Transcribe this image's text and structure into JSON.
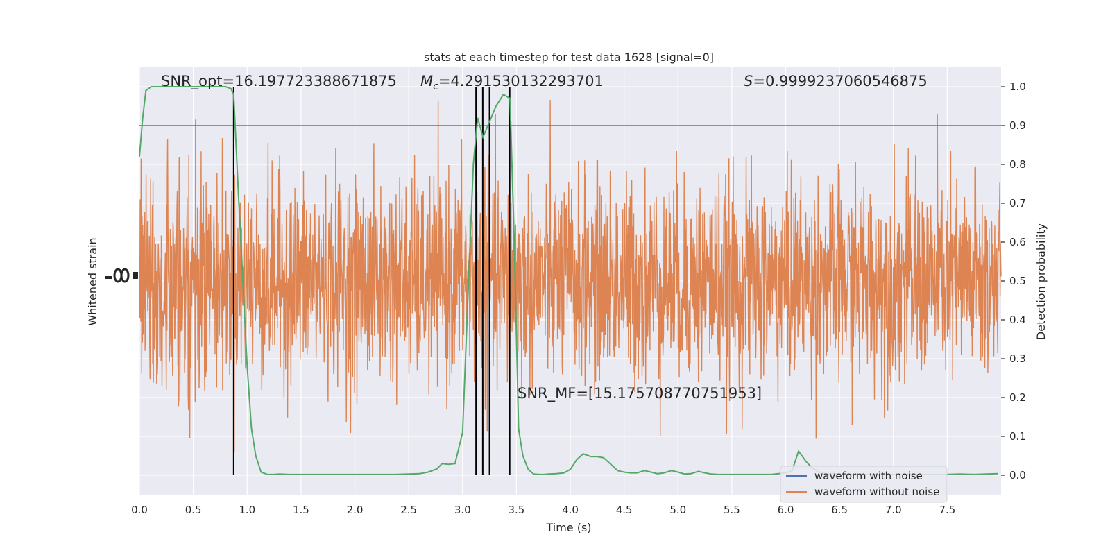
{
  "chart_data": {
    "type": "line",
    "title": "stats at each timestep for test data 1628 [signal=0]",
    "xlabel": "Time (s)",
    "ylabel_left": "Whitened strain",
    "ylabel_right": "Detection probability",
    "xlim": [
      0,
      8
    ],
    "ylim_right": [
      -0.05,
      1.05
    ],
    "x_ticks": [
      "0.0",
      "0.5",
      "1.0",
      "1.5",
      "2.0",
      "2.5",
      "3.0",
      "3.5",
      "4.0",
      "4.5",
      "5.0",
      "5.5",
      "6.0",
      "6.5",
      "7.0",
      "7.5"
    ],
    "y_ticks_right": [
      "0.0",
      "0.1",
      "0.2",
      "0.3",
      "0.4",
      "0.5",
      "0.6",
      "0.7",
      "0.8",
      "0.9",
      "1.0"
    ],
    "grid": true,
    "legend_position": "bottom-right",
    "annotations": {
      "snr_opt": "SNR_opt=16.197723388671875",
      "mc_symbol": "M",
      "mc_sub": "c",
      "mc_value": "=4.291530132293701",
      "s_symbol": "S",
      "s_value": "=0.9999237060546875",
      "snr_mf": "SNR_MF=[15.175708770751953]"
    },
    "threshold": {
      "value": 0.9,
      "color": "#c44e52"
    },
    "vertical_lines_x": [
      0.875,
      3.125,
      3.1875,
      3.25,
      3.4375
    ],
    "series": [
      {
        "name": "waveform with noise",
        "color": "#4c72b0",
        "kind": "noise"
      },
      {
        "name": "waveform without noise",
        "color": "#dd8452",
        "kind": "noise"
      },
      {
        "color": "#55a868",
        "kind": "probability",
        "x": [
          0.0,
          0.03,
          0.06,
          0.11,
          0.18,
          0.3,
          0.45,
          0.6,
          0.7,
          0.75,
          0.8,
          0.85,
          0.875,
          0.92,
          1.0,
          1.04,
          1.08,
          1.13,
          1.19,
          1.25,
          1.3,
          1.38,
          1.5,
          1.62,
          1.75,
          1.87,
          2.0,
          2.12,
          2.25,
          2.37,
          2.5,
          2.6,
          2.68,
          2.76,
          2.81,
          2.87,
          2.93,
          3.0,
          3.05,
          3.1,
          3.14,
          3.19,
          3.25,
          3.31,
          3.38,
          3.44,
          3.48,
          3.52,
          3.56,
          3.61,
          3.66,
          3.71,
          3.76,
          3.8,
          3.87,
          3.94,
          4.0,
          4.06,
          4.12,
          4.19,
          4.25,
          4.31,
          4.37,
          4.44,
          4.5,
          4.56,
          4.62,
          4.69,
          4.75,
          4.81,
          4.87,
          4.94,
          5.0,
          5.06,
          5.12,
          5.19,
          5.25,
          5.31,
          5.37,
          5.44,
          5.5,
          5.62,
          5.75,
          5.87,
          6.0,
          6.06,
          6.12,
          6.19,
          6.25,
          6.31,
          6.37,
          6.44,
          6.5,
          6.62,
          6.75,
          6.87,
          7.0,
          7.12,
          7.25,
          7.37,
          7.5,
          7.62,
          7.75,
          7.87,
          7.97
        ],
        "y": [
          0.82,
          0.92,
          0.99,
          1.0,
          1.0,
          1.0,
          1.0,
          1.0,
          1.0,
          1.0,
          1.0,
          0.995,
          0.98,
          0.72,
          0.28,
          0.12,
          0.05,
          0.008,
          0.002,
          0.002,
          0.003,
          0.002,
          0.002,
          0.002,
          0.002,
          0.002,
          0.002,
          0.002,
          0.002,
          0.002,
          0.003,
          0.004,
          0.008,
          0.016,
          0.03,
          0.028,
          0.03,
          0.11,
          0.46,
          0.8,
          0.92,
          0.87,
          0.91,
          0.95,
          0.98,
          0.97,
          0.6,
          0.12,
          0.05,
          0.015,
          0.003,
          0.002,
          0.002,
          0.003,
          0.004,
          0.006,
          0.015,
          0.04,
          0.055,
          0.048,
          0.048,
          0.045,
          0.03,
          0.012,
          0.008,
          0.006,
          0.006,
          0.012,
          0.008,
          0.004,
          0.006,
          0.012,
          0.008,
          0.003,
          0.004,
          0.01,
          0.006,
          0.003,
          0.002,
          0.002,
          0.002,
          0.002,
          0.002,
          0.002,
          0.006,
          0.012,
          0.062,
          0.035,
          0.018,
          0.008,
          0.004,
          0.004,
          0.003,
          0.002,
          0.002,
          0.002,
          0.002,
          0.002,
          0.002,
          0.002,
          0.002,
          0.003,
          0.002,
          0.003,
          0.004
        ]
      }
    ],
    "colors": {
      "background": "#eaeaf2",
      "grid": "#ffffff",
      "vline": "#000000"
    }
  }
}
